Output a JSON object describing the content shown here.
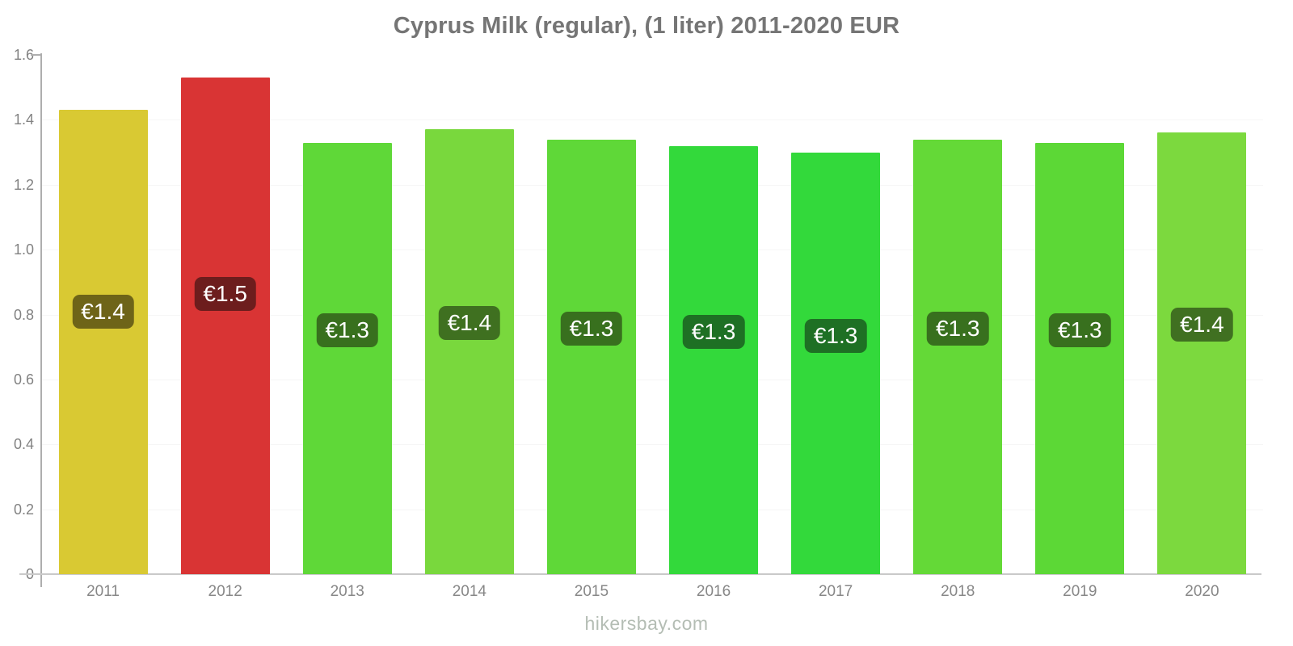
{
  "title": "Cyprus Milk (regular), (1 liter) 2011-2020 EUR",
  "footer": "hikersbay.com",
  "chart_data": {
    "type": "bar",
    "title": "Cyprus Milk (regular), (1 liter) 2011-2020 EUR",
    "categories": [
      "2011",
      "2012",
      "2013",
      "2014",
      "2015",
      "2016",
      "2017",
      "2018",
      "2019",
      "2020"
    ],
    "values": [
      1.43,
      1.53,
      1.33,
      1.37,
      1.34,
      1.32,
      1.3,
      1.34,
      1.33,
      1.36
    ],
    "bar_labels": [
      "€1.4",
      "€1.5",
      "€1.3",
      "€1.4",
      "€1.3",
      "€1.3",
      "€1.3",
      "€1.3",
      "€1.3",
      "€1.4"
    ],
    "bar_colors": [
      "#d9c933",
      "#d93434",
      "#5fd838",
      "#79d83d",
      "#5fd838",
      "#33d93b",
      "#33d93b",
      "#64d937",
      "#5cd836",
      "#7cd93e"
    ],
    "badge_colors": [
      "#6e6418",
      "#6d1d1d",
      "#38701e",
      "#3f7020",
      "#38701e",
      "#1e7024",
      "#1e7024",
      "#38701e",
      "#38701e",
      "#407021"
    ],
    "xlabel": "",
    "ylabel": "",
    "ylim": [
      0,
      1.6
    ],
    "ytick_values": [
      1.6,
      1.4,
      1.2,
      1.0,
      0.8,
      0.6,
      0.4,
      0.2,
      0
    ],
    "ytick_labels": [
      "1.6",
      "1.4",
      "1.2",
      "1.0",
      "0.8",
      "0.6",
      "0.4",
      "0.2",
      "0"
    ],
    "grid": "faint-horizontal",
    "legend": "none"
  }
}
